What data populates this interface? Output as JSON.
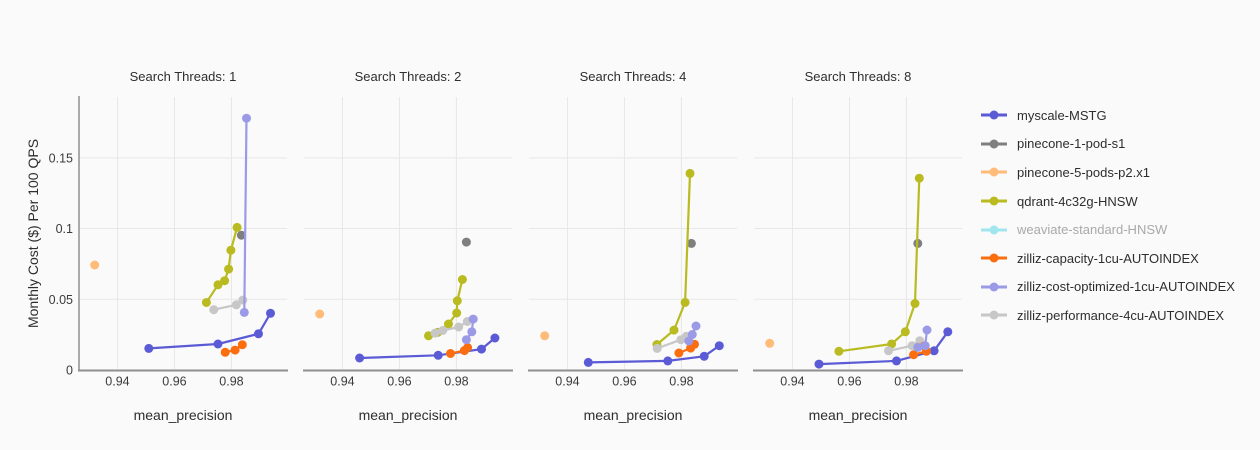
{
  "page": {
    "background_color": "#fafafa"
  },
  "chart_data": {
    "type": "scatter",
    "facet_variable": "Search Threads",
    "xlabel": "mean_precision",
    "ylabel": "Monthly Cost ($) Per 100 QPS",
    "xlim": [
      0.9265,
      0.9995
    ],
    "ylim": [
      0,
      0.193
    ],
    "xticks": {
      "values": [
        0.94,
        0.96,
        0.98
      ],
      "labels": [
        "0.94",
        "0.96",
        "0.98"
      ]
    },
    "yticks": {
      "values": [
        0,
        0.05,
        0.1,
        0.15
      ],
      "labels": [
        "0",
        "0.05",
        "0.1",
        "0.15"
      ]
    },
    "grid": true,
    "legend_position": "right",
    "text_color": "#2e2e2e",
    "grid_color": "#e7e7e7",
    "axis_line_color": "#8f8f8f",
    "facets": [
      {
        "title": "Search Threads: 1",
        "series": [
          {
            "name": "myscale-MSTG",
            "points": [
              [
                0.951,
                0.0153
              ],
              [
                0.9753,
                0.0184
              ],
              [
                0.9895,
                0.0256
              ],
              [
                0.9937,
                0.0401
              ]
            ]
          },
          {
            "name": "pinecone-1-pod-s1",
            "points": [
              [
                0.9835,
                0.0953
              ]
            ]
          },
          {
            "name": "pinecone-5-pods-p2.x1",
            "points": [
              [
                0.932,
                0.0742
              ]
            ]
          },
          {
            "name": "qdrant-4c32g-HNSW",
            "points": [
              [
                0.9712,
                0.0477
              ],
              [
                0.9753,
                0.0602
              ],
              [
                0.9776,
                0.0631
              ],
              [
                0.979,
                0.0713
              ],
              [
                0.9798,
                0.0847
              ],
              [
                0.982,
                0.1008
              ]
            ]
          },
          {
            "name": "zilliz-performance-4cu-AUTOINDEX",
            "points": [
              [
                0.9738,
                0.0426
              ],
              [
                0.9817,
                0.0461
              ],
              [
                0.984,
                0.0494
              ]
            ]
          },
          {
            "name": "zilliz-capacity-1cu-AUTOINDEX",
            "points": [
              [
                0.9778,
                0.0125
              ],
              [
                0.9813,
                0.0141
              ],
              [
                0.9838,
                0.0179
              ]
            ]
          },
          {
            "name": "zilliz-cost-optimized-1cu-AUTOINDEX",
            "points": [
              [
                0.9845,
                0.0407
              ],
              [
                0.9853,
                0.178
              ]
            ]
          }
        ]
      },
      {
        "title": "Search Threads: 2",
        "series": [
          {
            "name": "myscale-MSTG",
            "points": [
              [
                0.946,
                0.0085
              ],
              [
                0.9736,
                0.0104
              ],
              [
                0.9888,
                0.0148
              ],
              [
                0.9935,
                0.0226
              ]
            ]
          },
          {
            "name": "pinecone-1-pod-s1",
            "points": [
              [
                0.9835,
                0.0904
              ]
            ]
          },
          {
            "name": "pinecone-5-pods-p2.x1",
            "points": [
              [
                0.932,
                0.0396
              ]
            ]
          },
          {
            "name": "qdrant-4c32g-HNSW",
            "points": [
              [
                0.9702,
                0.0242
              ],
              [
                0.9734,
                0.0266
              ],
              [
                0.9772,
                0.0325
              ],
              [
                0.9801,
                0.0403
              ],
              [
                0.9803,
                0.0489
              ],
              [
                0.9821,
                0.064
              ]
            ]
          },
          {
            "name": "zilliz-performance-4cu-AUTOINDEX",
            "points": [
              [
                0.9725,
                0.0261
              ],
              [
                0.9752,
                0.0279
              ],
              [
                0.9808,
                0.0304
              ],
              [
                0.9838,
                0.0343
              ]
            ]
          },
          {
            "name": "zilliz-capacity-1cu-AUTOINDEX",
            "points": [
              [
                0.9779,
                0.0117
              ],
              [
                0.9828,
                0.0137
              ],
              [
                0.9839,
                0.0159
              ]
            ]
          },
          {
            "name": "zilliz-cost-optimized-1cu-AUTOINDEX",
            "points": [
              [
                0.9835,
                0.0214
              ],
              [
                0.9854,
                0.027
              ],
              [
                0.9859,
                0.036
              ]
            ]
          }
        ]
      },
      {
        "title": "Search Threads: 4",
        "series": [
          {
            "name": "myscale-MSTG",
            "points": [
              [
                0.9473,
                0.0054
              ],
              [
                0.9752,
                0.0064
              ],
              [
                0.988,
                0.0097
              ],
              [
                0.9933,
                0.0172
              ]
            ]
          },
          {
            "name": "pinecone-1-pod-s1",
            "points": [
              [
                0.9835,
                0.0895
              ]
            ]
          },
          {
            "name": "pinecone-5-pods-p2.x1",
            "points": [
              [
                0.932,
                0.0242
              ]
            ]
          },
          {
            "name": "qdrant-4c32g-HNSW",
            "points": [
              [
                0.9714,
                0.018
              ],
              [
                0.9774,
                0.0282
              ],
              [
                0.9813,
                0.0478
              ],
              [
                0.983,
                0.139
              ]
            ]
          },
          {
            "name": "zilliz-performance-4cu-AUTOINDEX",
            "points": [
              [
                0.9715,
                0.0153
              ],
              [
                0.9798,
                0.0214
              ],
              [
                0.9817,
                0.0238
              ]
            ]
          },
          {
            "name": "zilliz-capacity-1cu-AUTOINDEX",
            "points": [
              [
                0.9791,
                0.012
              ],
              [
                0.9832,
                0.0155
              ],
              [
                0.9846,
                0.0182
              ]
            ]
          },
          {
            "name": "zilliz-cost-optimized-1cu-AUTOINDEX",
            "points": [
              [
                0.9826,
                0.0205
              ],
              [
                0.9838,
                0.0251
              ],
              [
                0.9851,
                0.0311
              ]
            ]
          }
        ]
      },
      {
        "title": "Search Threads: 8",
        "series": [
          {
            "name": "myscale-MSTG",
            "points": [
              [
                0.9493,
                0.0042
              ],
              [
                0.9765,
                0.0064
              ],
              [
                0.9897,
                0.0136
              ],
              [
                0.9945,
                0.027
              ]
            ]
          },
          {
            "name": "pinecone-1-pod-s1",
            "points": [
              [
                0.984,
                0.0895
              ]
            ]
          },
          {
            "name": "pinecone-5-pods-p2.x1",
            "points": [
              [
                0.932,
                0.0189
              ]
            ]
          },
          {
            "name": "qdrant-4c32g-HNSW",
            "points": [
              [
                0.9563,
                0.0132
              ],
              [
                0.9748,
                0.0184
              ],
              [
                0.9796,
                0.027
              ],
              [
                0.983,
                0.047
              ],
              [
                0.9845,
                0.1356
              ]
            ]
          },
          {
            "name": "zilliz-performance-4cu-AUTOINDEX",
            "points": [
              [
                0.9737,
                0.0136
              ],
              [
                0.982,
                0.0172
              ],
              [
                0.9847,
                0.0207
              ]
            ]
          },
          {
            "name": "zilliz-capacity-1cu-AUTOINDEX",
            "points": [
              [
                0.9825,
                0.0108
              ],
              [
                0.987,
                0.0132
              ],
              [
                0.9862,
                0.017
              ]
            ]
          },
          {
            "name": "zilliz-cost-optimized-1cu-AUTOINDEX",
            "points": [
              [
                0.984,
                0.016
              ],
              [
                0.9866,
                0.0172
              ],
              [
                0.9872,
                0.0283
              ]
            ]
          }
        ]
      }
    ]
  },
  "legend": {
    "items": [
      {
        "label": "myscale-MSTG",
        "color": "#5b5bd6",
        "active": true
      },
      {
        "label": "pinecone-1-pod-s1",
        "color": "#7f7f7f",
        "active": true
      },
      {
        "label": "pinecone-5-pods-p2.x1",
        "color": "#ffbb78",
        "active": true
      },
      {
        "label": "qdrant-4c32g-HNSW",
        "color": "#b9bb20",
        "active": true
      },
      {
        "label": "weaviate-standard-HNSW",
        "color": "#72dce8",
        "active": false
      },
      {
        "label": "zilliz-capacity-1cu-AUTOINDEX",
        "color": "#fb6e10",
        "active": true
      },
      {
        "label": "zilliz-cost-optimized-1cu-AUTOINDEX",
        "color": "#9b9ae6",
        "active": true
      },
      {
        "label": "zilliz-performance-4cu-AUTOINDEX",
        "color": "#c7c7c7",
        "active": true
      }
    ]
  }
}
